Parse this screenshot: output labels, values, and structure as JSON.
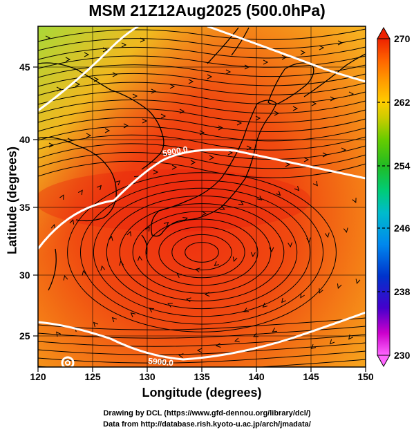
{
  "title": "MSM 21Z12Aug2025 (500.0hPa)",
  "map": {
    "xlabel": "Longitude (degrees)",
    "ylabel": "Latitude  (degrees)",
    "x_range": [
      120,
      150
    ],
    "y_range": [
      22.5,
      47.5
    ],
    "x_ticks": [
      "120",
      "125",
      "130",
      "135",
      "140",
      "145",
      "150"
    ],
    "y_ticks": [
      "25",
      "30",
      "35",
      "40",
      "45"
    ],
    "contours": [
      {
        "label": "5900.0"
      },
      {
        "label": "5900.0"
      }
    ]
  },
  "colorbar": {
    "ticks": [
      "270",
      "262",
      "254",
      "246",
      "238",
      "230"
    ],
    "colors": [
      "#ff66ff",
      "#cc00cc",
      "#4400cc",
      "#0033cc",
      "#0088ee",
      "#00bbcc",
      "#00cc77",
      "#22bb22",
      "#66cc00",
      "#cccc00",
      "#ffcc00",
      "#ff9900",
      "#ff6600",
      "#ff3300",
      "#ee2200"
    ]
  },
  "credits": {
    "line1": "Drawing by DCL (https://www.gfd-dennou.org/library/dcl/)",
    "line2": "Data from http://database.rish.kyoto-u.ac.jp/arch/jmadata/"
  }
}
